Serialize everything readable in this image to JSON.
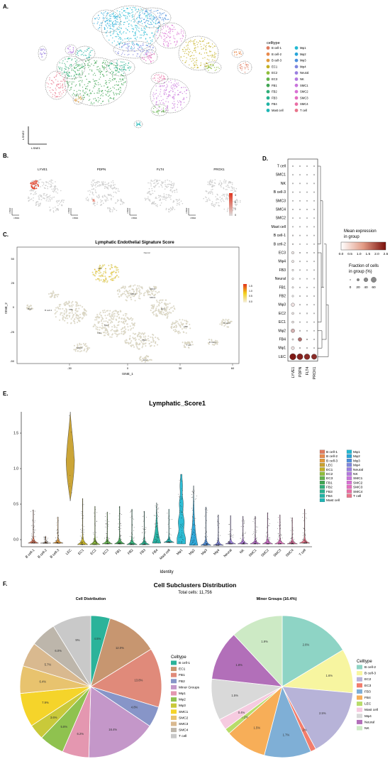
{
  "panels": {
    "a": "A.",
    "b": "B.",
    "c": "C.",
    "d": "D.",
    "e": "E.",
    "f": "F."
  },
  "colors": {
    "B cell-1": "#e0795d",
    "B cell-2": "#e88a4c",
    "B cell-3": "#e39a3a",
    "LEC": "#c9a12d",
    "EC1": "#c4b023",
    "EC2": "#8fbe3a",
    "EC3": "#62b34a",
    "FB1": "#3fa552",
    "FB2": "#2fae78",
    "FB3": "#25b08e",
    "FB4": "#20b3a4",
    "Mast cell": "#1eb6b5",
    "Mφ1": "#22b9d2",
    "Mφ2": "#27a5d9",
    "Mφ3": "#4d8fdc",
    "Mφ4": "#7f86df",
    "Neural": "#9a7fe0",
    "NK": "#b37ae0",
    "SMC1": "#c975dc",
    "SMC2": "#d96fd3",
    "SMC3": "#e46cc0",
    "SMC4": "#ea6ea5",
    "T cell": "#e8748a"
  },
  "panel_a": {
    "legend_title": "celltype",
    "legend": [
      "B cell-1",
      "B cell-2",
      "B cell-3",
      "EC1",
      "EC2",
      "EC3",
      "FB1",
      "FB2",
      "FB3",
      "FB4",
      "Mast cell",
      "Mφ1",
      "Mφ2",
      "Mφ3",
      "Mφ4",
      "Neural",
      "NK",
      "SMC1",
      "SMC2",
      "SMC3",
      "SMC4",
      "T cell"
    ],
    "xlabel": "t-SNE1",
    "ylabel": "t-SNE2"
  },
  "panel_b": {
    "genes": [
      "LYVE1",
      "PDPN",
      "FLT4",
      "PROX1"
    ],
    "xlabel": "t-SNE1",
    "ylabel": "t-SNE2",
    "scale_ticks": [
      "3",
      "2",
      "1",
      "0"
    ]
  },
  "panel_c": {
    "title": "Lymphatic Endothelial Signature Score",
    "xlabel": "tSNE_1",
    "ylabel": "tSNE_2",
    "xticks": [
      "-30",
      "0",
      "30",
      "60"
    ],
    "yticks": [
      "50",
      "25",
      "0",
      "-25",
      "-50"
    ],
    "scale_ticks": [
      "1.5",
      "1.0",
      "0.5",
      "0.0"
    ],
    "cluster_labels": [
      "Neural",
      "Mast",
      "LEC",
      "FB1",
      "FB4",
      "EC1",
      "B cell-3",
      "Mφ1",
      "FB2",
      "FB3",
      "SMC1",
      "SMC2",
      "SMC3",
      "EC2",
      "T cell",
      "B cell-1",
      "B cell-2",
      "SMC4"
    ]
  },
  "panel_d": {
    "rows": [
      "T cell",
      "SMC1",
      "NK",
      "B cell-3",
      "SMC3",
      "SMC4",
      "SMC2",
      "Mast cell",
      "B cell-1",
      "B cell-2",
      "EC3",
      "Mφ4",
      "FB3",
      "Neural",
      "FB1",
      "FB2",
      "Mφ3",
      "EC2",
      "EC1",
      "Mφ2",
      "FB4",
      "Mφ1",
      "LEC"
    ],
    "cols": [
      "LYVE1",
      "PDPN",
      "FLT4",
      "PROX1"
    ],
    "mean_title": "Mean expression\nin group",
    "mean_ticks": [
      "0.0",
      "0.5",
      "1.0",
      "1.5",
      "2.0",
      "2.5"
    ],
    "frac_title": "Fraction of cells\nin group (%)",
    "frac_ticks": [
      "0",
      "20",
      "40",
      "60"
    ],
    "dots": [
      [
        0.02,
        0.02,
        0.02,
        0.02
      ],
      [
        0.02,
        0.02,
        0.02,
        0.02
      ],
      [
        0.02,
        0.02,
        0.02,
        0.02
      ],
      [
        0.03,
        0.02,
        0.02,
        0.02
      ],
      [
        0.02,
        0.02,
        0.02,
        0.02
      ],
      [
        0.02,
        0.02,
        0.02,
        0.02
      ],
      [
        0.02,
        0.02,
        0.02,
        0.02
      ],
      [
        0.02,
        0.02,
        0.02,
        0.02
      ],
      [
        0.05,
        0.02,
        0.02,
        0.02
      ],
      [
        0.06,
        0.02,
        0.02,
        0.02
      ],
      [
        0.25,
        0.05,
        0.03,
        0.02
      ],
      [
        0.22,
        0.04,
        0.02,
        0.02
      ],
      [
        0.14,
        0.03,
        0.02,
        0.02
      ],
      [
        0.15,
        0.03,
        0.02,
        0.02
      ],
      [
        0.13,
        0.03,
        0.02,
        0.02
      ],
      [
        0.14,
        0.03,
        0.02,
        0.02
      ],
      [
        0.4,
        0.04,
        0.03,
        0.02
      ],
      [
        0.2,
        0.03,
        0.05,
        0.02
      ],
      [
        0.2,
        0.03,
        0.03,
        0.02
      ],
      [
        0.45,
        0.05,
        0.03,
        0.02
      ],
      [
        0.12,
        0.45,
        0.06,
        0.02
      ],
      [
        0.35,
        0.06,
        0.05,
        0.03
      ],
      [
        0.85,
        0.8,
        0.75,
        0.7
      ]
    ],
    "mean": [
      [
        0,
        0,
        0,
        0
      ],
      [
        0,
        0,
        0,
        0
      ],
      [
        0,
        0,
        0,
        0
      ],
      [
        0,
        0,
        0,
        0
      ],
      [
        0,
        0,
        0,
        0
      ],
      [
        0,
        0,
        0,
        0
      ],
      [
        0,
        0,
        0,
        0
      ],
      [
        0,
        0,
        0,
        0
      ],
      [
        0.1,
        0,
        0,
        0
      ],
      [
        0.1,
        0,
        0,
        0
      ],
      [
        0.2,
        0,
        0,
        0
      ],
      [
        0.2,
        0,
        0,
        0
      ],
      [
        0.1,
        0,
        0,
        0
      ],
      [
        0.1,
        0,
        0,
        0
      ],
      [
        0.1,
        0,
        0,
        0
      ],
      [
        0.1,
        0,
        0,
        0
      ],
      [
        0.3,
        0,
        0,
        0
      ],
      [
        0.2,
        0,
        0,
        0
      ],
      [
        0.2,
        0,
        0,
        0
      ],
      [
        0.8,
        0,
        0,
        0
      ],
      [
        0.2,
        1.5,
        0.1,
        0
      ],
      [
        0.3,
        0.1,
        0,
        0
      ],
      [
        2.4,
        2.3,
        2.2,
        2.2
      ]
    ]
  },
  "chart_data": [
    {
      "type": "violin",
      "title": "Lymphatic_Score1",
      "xlabel": "Identity",
      "ylabel": "",
      "ylim": [
        -0.1,
        1.8
      ],
      "yticks": [
        "0.0",
        "0.5",
        "1.0",
        "1.5"
      ],
      "categories": [
        "B cell-1",
        "B cell-2",
        "B cell-3",
        "LEC",
        "EC1",
        "EC2",
        "EC3",
        "FB1",
        "FB2",
        "FB3",
        "FB4",
        "Mast cell",
        "Mφ1",
        "Mφ2",
        "Mφ3",
        "Mφ4",
        "Neural",
        "NK",
        "SMC1",
        "SMC2",
        "SMC3",
        "SMC4",
        "T cell"
      ],
      "max": [
        0.42,
        0.05,
        0.32,
        1.8,
        0.58,
        0.47,
        0.39,
        0.47,
        0.43,
        0.4,
        0.52,
        0.43,
        0.92,
        0.76,
        0.46,
        0.35,
        0.34,
        0.33,
        0.33,
        0.38,
        0.35,
        0.31,
        0.43
      ],
      "min": [
        -0.05,
        -0.05,
        -0.05,
        0.55,
        -0.07,
        -0.07,
        -0.06,
        -0.06,
        -0.07,
        -0.07,
        -0.05,
        -0.04,
        -0.06,
        -0.08,
        -0.08,
        -0.08,
        -0.06,
        -0.06,
        -0.06,
        -0.06,
        -0.06,
        -0.06,
        -0.05
      ],
      "legend": [
        "B cell-1",
        "B cell-2",
        "B cell-3",
        "LEC",
        "EC1",
        "EC2",
        "EC3",
        "FB1",
        "FB2",
        "FB3",
        "FB4",
        "Mast cell",
        "Mφ1",
        "Mφ2",
        "Mφ3",
        "Mφ4",
        "Neural",
        "NK",
        "SMC1",
        "SMC2",
        "SMC3",
        "SMC4",
        "T cell"
      ]
    },
    {
      "type": "pie",
      "title": "Cell Distribution",
      "legend_title": "Celltype",
      "labels": [
        "B cell-1",
        "EC1",
        "FB1",
        "FB2",
        "Minor Groups",
        "Mφ1",
        "Mφ2",
        "Mφ3",
        "SMC1",
        "SMC2",
        "SMC3",
        "SMC4",
        "T cell"
      ],
      "values": [
        4.5,
        12.0,
        13.8,
        4.8,
        16.4,
        6.2,
        5.8,
        3.6,
        7.9,
        6.4,
        5.7,
        6.0,
        9.0
      ],
      "value_labels": [
        "4.5%",
        "12.0%",
        "13.8%",
        "4.8%",
        "16.4%",
        "6.2%",
        "5.8%",
        "3.6%",
        "7.9%",
        "6.4%",
        "5.7%",
        "6.0%",
        "9%"
      ],
      "colors": [
        "#2bb39a",
        "#c79670",
        "#e08a7a",
        "#8795c8",
        "#c497c9",
        "#e497b0",
        "#8fc24f",
        "#c9c93a",
        "#f5d42a",
        "#e8c36e",
        "#d9b98f",
        "#bdb6ab",
        "#c9c9c9"
      ]
    },
    {
      "type": "pie",
      "title": "Minor Groups (16.4%)",
      "legend_title": "Celltype",
      "labels": [
        "B cell-2",
        "B cell-3",
        "EC2",
        "EC3",
        "FB3",
        "FB4",
        "LEC",
        "Mast cell",
        "Mφ4",
        "Neural",
        "NK"
      ],
      "values": [
        2.6,
        1.6,
        2.5,
        0.2,
        1.7,
        1.5,
        0.2,
        0.4,
        1.5,
        1.8,
        1.9
      ],
      "value_labels": [
        "2.6%",
        "1.6%",
        "2.5%",
        "0.2%",
        "1.7%",
        "1.5%",
        "0.2%",
        "0.4%",
        "1.5%",
        "1.8%",
        "1.9%"
      ],
      "colors": [
        "#8ed4c5",
        "#f7f5a0",
        "#b7b3d8",
        "#f27d6c",
        "#7fafd6",
        "#f7ae58",
        "#b8dc6a",
        "#f6cbe0",
        "#d9d9d9",
        "#b26fb9",
        "#cdeac5"
      ]
    }
  ],
  "panel_f": {
    "title": "Cell Subclusters Distribution",
    "subtitle": "Total cells: 11,756"
  }
}
